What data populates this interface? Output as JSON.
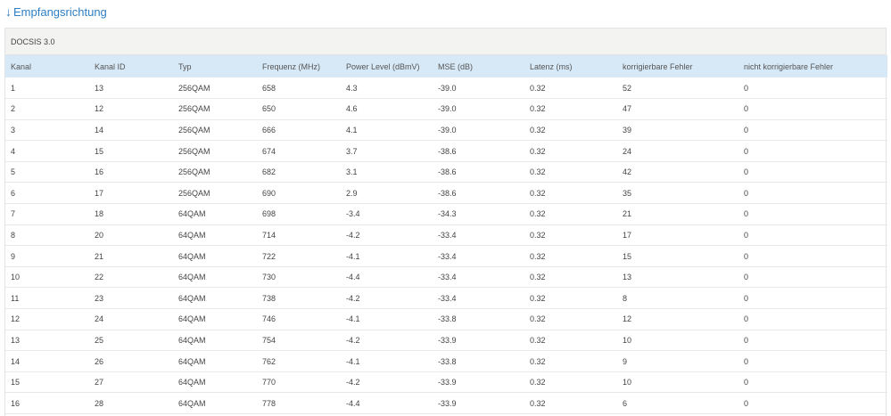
{
  "section": {
    "arrow": "↓",
    "title": "Empfangsrichtung"
  },
  "panel": {
    "title": "DOCSIS 3.0"
  },
  "table": {
    "headers": [
      "Kanal",
      "Kanal ID",
      "Typ",
      "Frequenz (MHz)",
      "Power Level (dBmV)",
      "MSE (dB)",
      "Latenz (ms)",
      "korrigierbare Fehler",
      "nicht korrigierbare Fehler"
    ],
    "rows": [
      [
        "1",
        "13",
        "256QAM",
        "658",
        "4.3",
        "-39.0",
        "0.32",
        "52",
        "0"
      ],
      [
        "2",
        "12",
        "256QAM",
        "650",
        "4.6",
        "-39.0",
        "0.32",
        "47",
        "0"
      ],
      [
        "3",
        "14",
        "256QAM",
        "666",
        "4.1",
        "-39.0",
        "0.32",
        "39",
        "0"
      ],
      [
        "4",
        "15",
        "256QAM",
        "674",
        "3.7",
        "-38.6",
        "0.32",
        "24",
        "0"
      ],
      [
        "5",
        "16",
        "256QAM",
        "682",
        "3.1",
        "-38.6",
        "0.32",
        "42",
        "0"
      ],
      [
        "6",
        "17",
        "256QAM",
        "690",
        "2.9",
        "-38.6",
        "0.32",
        "35",
        "0"
      ],
      [
        "7",
        "18",
        "64QAM",
        "698",
        "-3.4",
        "-34.3",
        "0.32",
        "21",
        "0"
      ],
      [
        "8",
        "20",
        "64QAM",
        "714",
        "-4.2",
        "-33.4",
        "0.32",
        "17",
        "0"
      ],
      [
        "9",
        "21",
        "64QAM",
        "722",
        "-4.1",
        "-33.4",
        "0.32",
        "15",
        "0"
      ],
      [
        "10",
        "22",
        "64QAM",
        "730",
        "-4.4",
        "-33.4",
        "0.32",
        "13",
        "0"
      ],
      [
        "11",
        "23",
        "64QAM",
        "738",
        "-4.2",
        "-33.4",
        "0.32",
        "8",
        "0"
      ],
      [
        "12",
        "24",
        "64QAM",
        "746",
        "-4.1",
        "-33.8",
        "0.32",
        "12",
        "0"
      ],
      [
        "13",
        "25",
        "64QAM",
        "754",
        "-4.2",
        "-33.9",
        "0.32",
        "10",
        "0"
      ],
      [
        "14",
        "26",
        "64QAM",
        "762",
        "-4.1",
        "-33.8",
        "0.32",
        "9",
        "0"
      ],
      [
        "15",
        "27",
        "64QAM",
        "770",
        "-4.2",
        "-33.9",
        "0.32",
        "10",
        "0"
      ],
      [
        "16",
        "28",
        "64QAM",
        "778",
        "-4.4",
        "-33.9",
        "0.32",
        "6",
        "0"
      ]
    ]
  },
  "colors": {
    "link": "#2d7fc4",
    "header_row": "#d7e9f7",
    "panel_head": "#f3f3f2"
  }
}
